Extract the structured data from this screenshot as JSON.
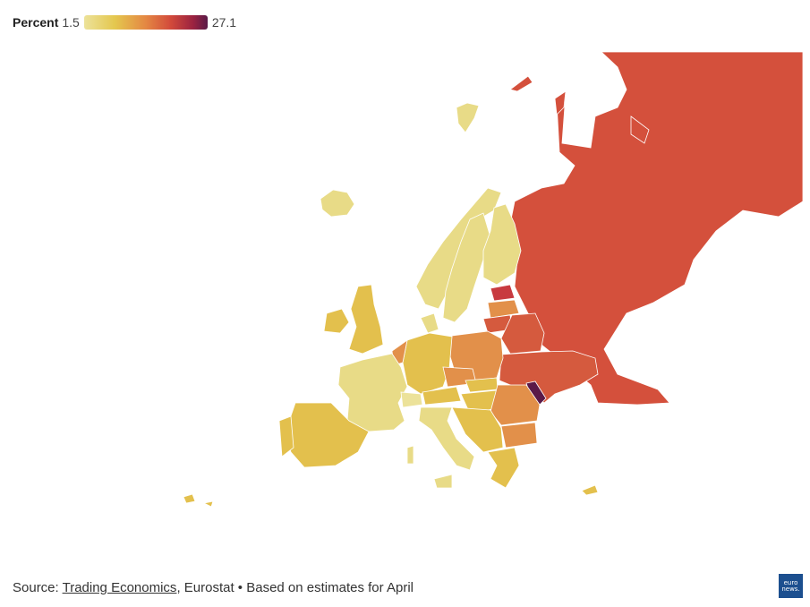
{
  "legend": {
    "title": "Percent",
    "min": "1.5",
    "max": "27.1",
    "scale_colors": [
      "#ece29a",
      "#e4c74e",
      "#e48743",
      "#d24a3b",
      "#9c2340",
      "#5a1a48"
    ]
  },
  "map_data": {
    "type": "choropleth",
    "region": "Europe",
    "value_range": [
      1.5,
      27.1
    ],
    "unit": "Percent",
    "category_colors": {
      "very_low": "#e8db87",
      "low": "#e3c04d",
      "medium": "#e2904a",
      "high": "#d55a3e",
      "very_high": "#c83a40",
      "max": "#5a1a48"
    }
  },
  "footer": {
    "source_prefix": "Source: ",
    "source_link": "Trading Economics",
    "source_rest": ", Eurostat • Based on estimates for April",
    "logo_line1": "euro",
    "logo_line2": "news."
  }
}
